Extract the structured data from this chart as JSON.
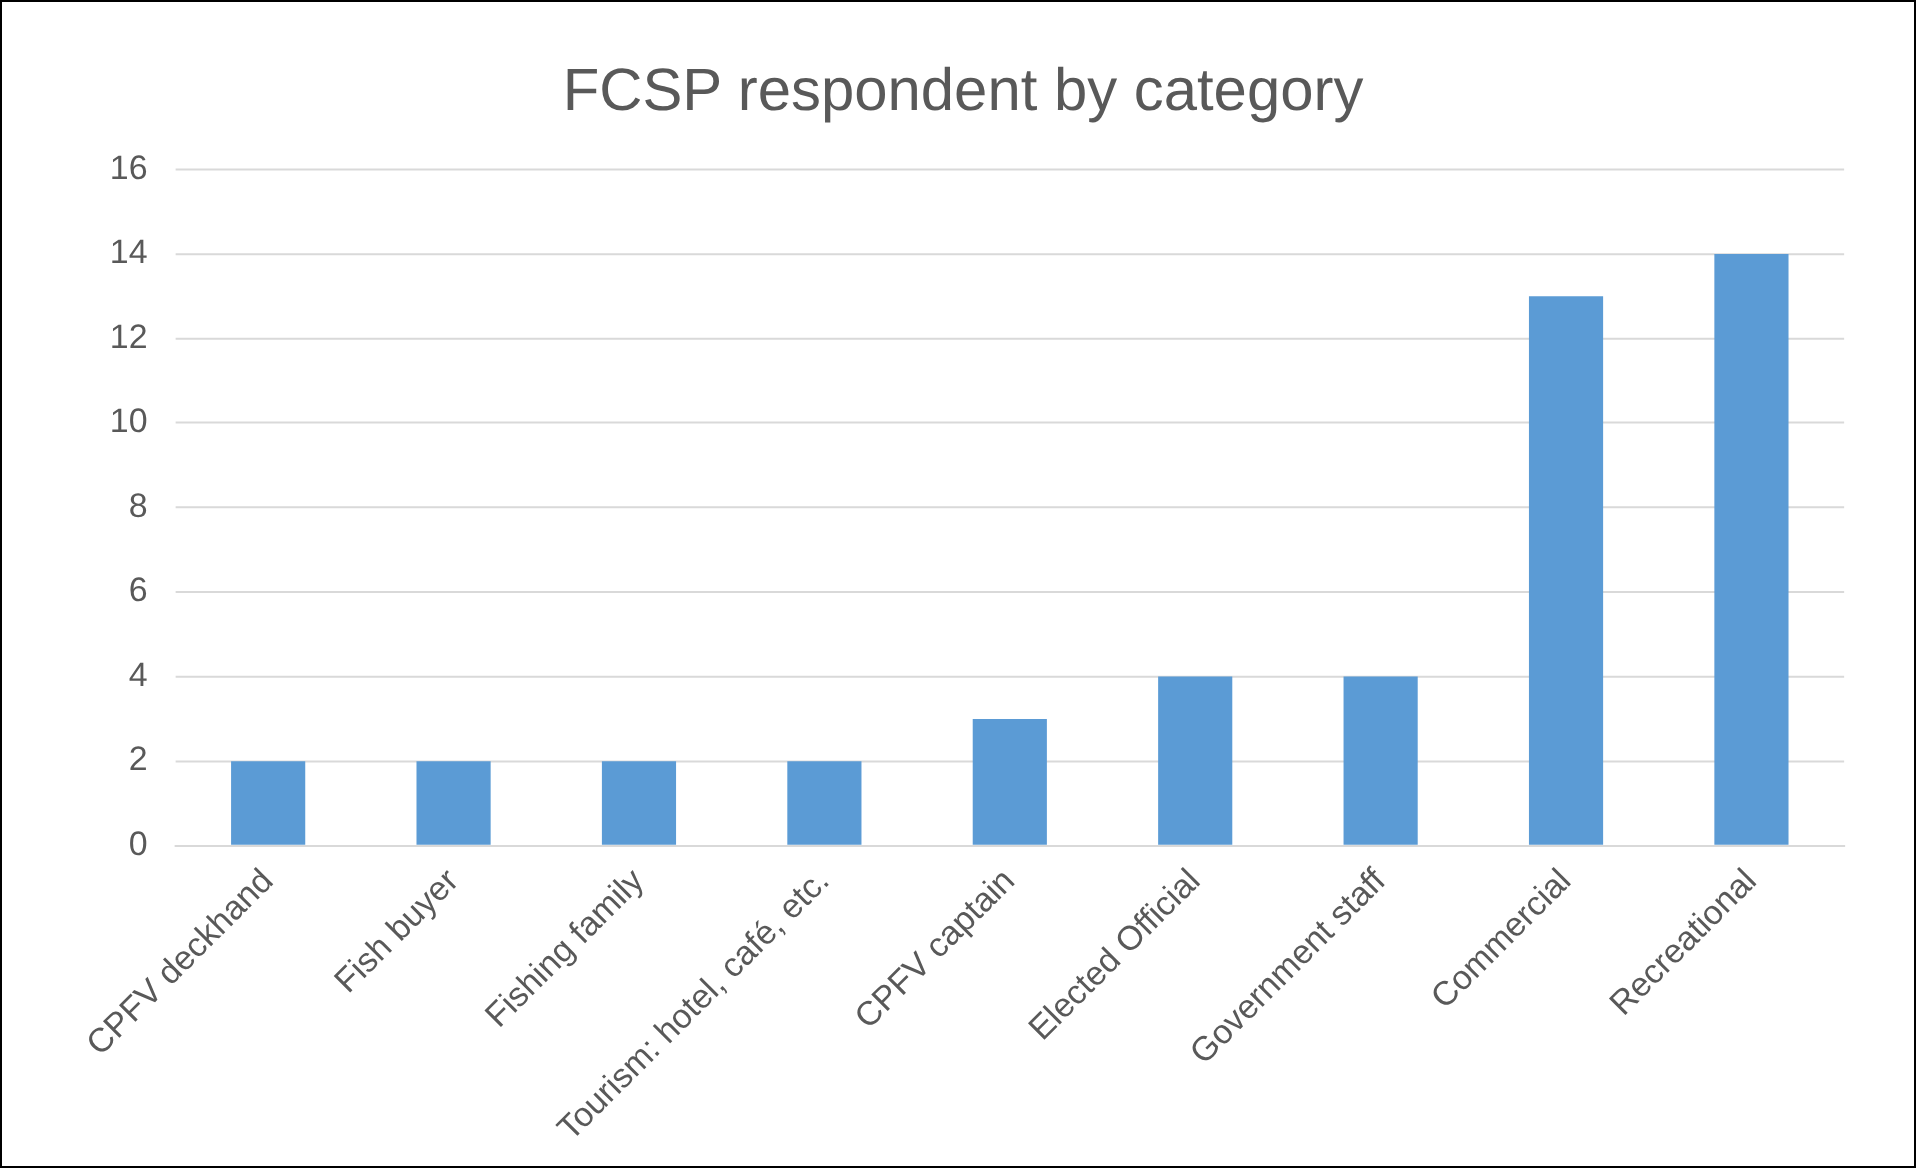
{
  "chart_data": {
    "type": "bar",
    "title": "FCSP respondent by category",
    "categories": [
      "CPFV deckhand",
      "Fish buyer",
      "Fishing family",
      "Tourism: hotel, café, etc.",
      "CPFV captain",
      "Elected Official",
      "Government staff",
      "Commercial",
      "Recreational"
    ],
    "values": [
      2,
      2,
      2,
      2,
      3,
      4,
      4,
      13,
      14
    ],
    "color": "#5b9bd5",
    "ylim": [
      0,
      16
    ],
    "yticks": [
      0,
      2,
      4,
      6,
      8,
      10,
      12,
      14,
      16
    ],
    "grid": "y",
    "legend": false
  }
}
